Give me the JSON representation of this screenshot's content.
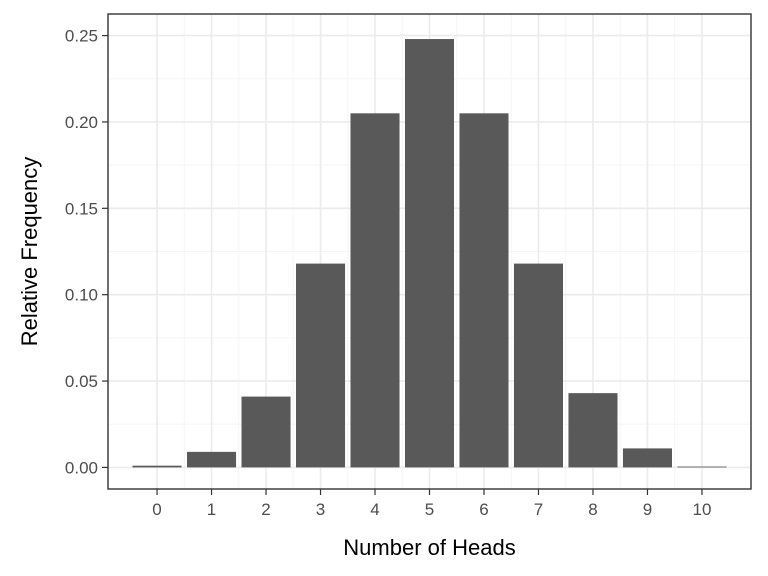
{
  "chart_data": {
    "type": "bar",
    "title": "",
    "xlabel": "Number of Heads",
    "ylabel": "Relative Frequency",
    "categories": [
      "0",
      "1",
      "2",
      "3",
      "4",
      "5",
      "6",
      "7",
      "8",
      "9",
      "10"
    ],
    "values": [
      0.001,
      0.009,
      0.041,
      0.118,
      0.205,
      0.248,
      0.205,
      0.118,
      0.043,
      0.011,
      0.0005
    ],
    "xlim": [
      -0.9,
      10.9
    ],
    "ylim": [
      -0.0125,
      0.2625
    ],
    "yticks": [
      0,
      0.05,
      0.1,
      0.15,
      0.2,
      0.25
    ],
    "ytick_labels": [
      "0.00",
      "0.05",
      "0.10",
      "0.15",
      "0.20",
      "0.25"
    ],
    "grid": true,
    "theme": "bw",
    "legend": "none",
    "colors": {
      "bar": "#595959",
      "panel_border": "#333333",
      "grid_major": "#ebebeb",
      "grid_minor": "#f5f5f5",
      "tick_text": "#4d4d4d",
      "axis_title": "#000000"
    }
  }
}
